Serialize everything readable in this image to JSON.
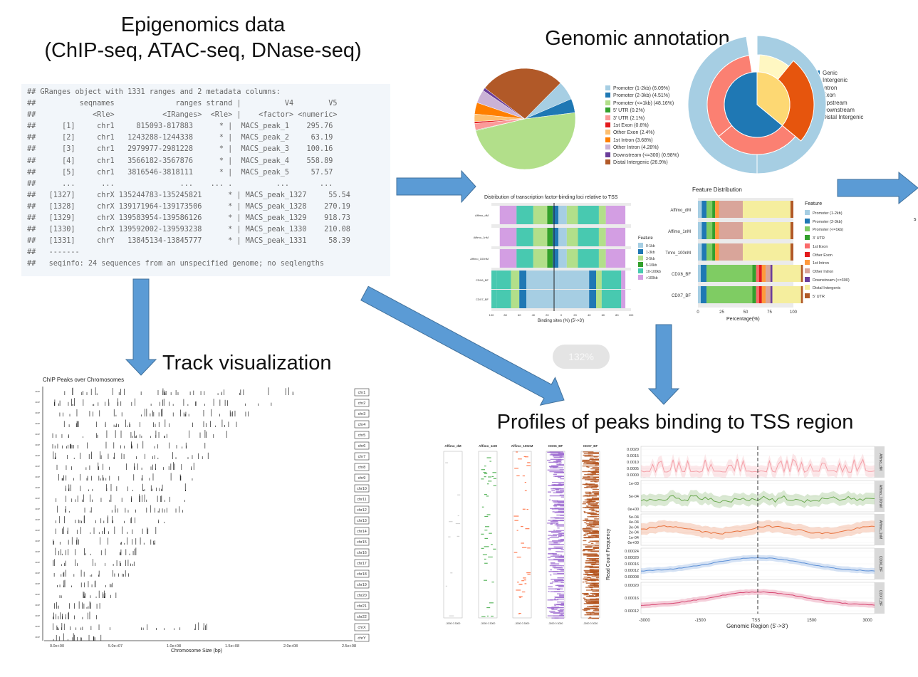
{
  "titles": {
    "epigenomics_line1": "Epigenomics data",
    "epigenomics_line2": "(ChIP-seq, ATAC-seq, DNase-seq)",
    "genomic_annotation": "Genomic annotation",
    "track_visualization": "Track visualization",
    "profiles": "Profiles of peaks binding to TSS region"
  },
  "code_lines": [
    "## GRanges object with 1331 ranges and 2 metadata columns:",
    "##          seqnames              ranges strand |          V4        V5",
    "##             <Rle>           <IRanges>  <Rle> |    <factor> <numeric>",
    "##      [1]     chr1     815093-817883      * |  MACS_peak_1    295.76",
    "##      [2]     chr1   1243288-1244338      * |  MACS_peak_2     63.19",
    "##      [3]     chr1   2979977-2981228      * |  MACS_peak_3    100.16",
    "##      [4]     chr1   3566182-3567876      * |  MACS_peak_4    558.89",
    "##      [5]     chr1   3816546-3818111      * |  MACS_peak_5     57.57",
    "##      ...      ...               ...    ... .          ...       ...",
    "##   [1327]     chrX 135244783-135245821      * | MACS_peak_1327     55.54",
    "##   [1328]     chrX 139171964-139173506      * | MACS_peak_1328    270.19",
    "##   [1329]     chrX 139583954-139586126      * | MACS_peak_1329    918.73",
    "##   [1330]     chrX 139592002-139593238      * | MACS_peak_1330    210.08",
    "##   [1331]     chrY   13845134-13845777      * | MACS_peak_1331     58.39",
    "##   -------",
    "##   seqinfo: 24 sequences from an unspecified genome; no seqlengths"
  ],
  "pie_legend": [
    {
      "label": "Promoter (1-2kb) (6.09%)",
      "color": "#a6cee3"
    },
    {
      "label": "Promoter (2-3kb) (4.51%)",
      "color": "#1f78b4"
    },
    {
      "label": "Promoter (<=1kb) (48.16%)",
      "color": "#b2df8a"
    },
    {
      "label": "5' UTR (0.2%)",
      "color": "#33a02c"
    },
    {
      "label": "3' UTR (2.1%)",
      "color": "#fb9a99"
    },
    {
      "label": "1st Exon (0.6%)",
      "color": "#e31a1c"
    },
    {
      "label": "Other Exon (2.4%)",
      "color": "#fdbf6f"
    },
    {
      "label": "1st Intron (3.68%)",
      "color": "#ff7f00"
    },
    {
      "label": "Other Intron (4.28%)",
      "color": "#cab2d6"
    },
    {
      "label": "Downstream (<=300) (0.98%)",
      "color": "#6a3d9a"
    },
    {
      "label": "Distal Intergenic (26.9%)",
      "color": "#b15928"
    }
  ],
  "donut_legend": [
    {
      "label": "Genic",
      "color": "#1f78b4"
    },
    {
      "label": "Intergenic",
      "color": "#fdbf6f"
    },
    {
      "label": "Intron",
      "color": "#fb8072"
    },
    {
      "label": "Exon",
      "color": "#a6cee3"
    },
    {
      "label": "Upstream",
      "color": "#fdd873"
    },
    {
      "label": "Downstream",
      "color": "#fff7c2"
    },
    {
      "label": "Distal Intergenic",
      "color": "#e6550d"
    }
  ],
  "tss_chart": {
    "title": "Distribution of transcription factor-binding loci relative to TSS",
    "xlabel": "Binding sites (%) (5'->3')",
    "rows": [
      "Affimo_dM",
      "Affimo_1nM",
      "Affimo_100nM",
      "CDX6_BF",
      "CDX7_BF"
    ],
    "legend_title": "Feature",
    "legend": [
      {
        "label": "0-1kb",
        "color": "#a6cee3"
      },
      {
        "label": "1-3kb",
        "color": "#1f78b4"
      },
      {
        "label": "3-5kb",
        "color": "#b2df8a"
      },
      {
        "label": "5-10kb",
        "color": "#33a02c"
      },
      {
        "label": "10-100kb",
        "color": "#48c9b0"
      },
      {
        "label": ">100kb",
        "color": "#d39ee3"
      }
    ]
  },
  "feature_chart": {
    "title": "Feature Distribution",
    "xlabel": "Percentage(%)",
    "ticks": [
      "0",
      "25",
      "50",
      "75",
      "100"
    ],
    "rows": [
      "Affimo_dM",
      "Affimo_1nM",
      "Tmro_100nM",
      "CDX6_BF",
      "CDX7_BF"
    ],
    "legend_title": "Feature",
    "legend": [
      {
        "label": "Promoter (1-2kb)",
        "color": "#a6cee3"
      },
      {
        "label": "Promoter (2-3kb)",
        "color": "#1f78b4"
      },
      {
        "label": "Promoter (<=1kb)",
        "color": "#7fcc63"
      },
      {
        "label": "3' UTR",
        "color": "#33a02c"
      },
      {
        "label": "1st Exon",
        "color": "#fb6a6a"
      },
      {
        "label": "Other Exon",
        "color": "#e31a1c"
      },
      {
        "label": "1st Intron",
        "color": "#ff9a3c"
      },
      {
        "label": "Other Intron",
        "color": "#d9a59a"
      },
      {
        "label": "Downstream (<=300)",
        "color": "#6a3d9a"
      },
      {
        "label": "Distal Intergenic",
        "color": "#f5ee9e"
      },
      {
        "label": "5' UTR",
        "color": "#b15928"
      }
    ]
  },
  "track": {
    "title": "ChIP Peaks over Chromosomes",
    "xlabel": "Chromosome Size (bp)",
    "ticks": [
      "0.0e+00",
      "5.0e+07",
      "1.0e+08",
      "1.5e+08",
      "2.0e+08",
      "2.5e+08"
    ],
    "chromosomes": [
      "chr1",
      "chr2",
      "chr3",
      "chr4",
      "chr5",
      "chr6",
      "chr7",
      "chr8",
      "chr9",
      "chr10",
      "chr11",
      "chr12",
      "chr13",
      "chr14",
      "chr15",
      "chr16",
      "chr17",
      "chr18",
      "chr19",
      "chr20",
      "chr21",
      "chr22",
      "chrX",
      "chrY"
    ]
  },
  "heatmap_labels": [
    "Affimo_dM",
    "Affimo_1nM",
    "Affimo_100nM",
    "CDX6_BF",
    "CDX7_BF"
  ],
  "heatmap_colors": [
    "#cccccc",
    "#4caf50",
    "#ff7043",
    "#9c6ad0",
    "#b3541e"
  ],
  "heatmap_tick": "-3000  0  3000",
  "profile": {
    "ylabel": "Read Count Frequency",
    "xlabel": "Genomic Region (5'->3')",
    "xticks": [
      "-3000",
      "-1500",
      "TSS",
      "1500",
      "3000"
    ],
    "strips": [
      "Affimo_dM",
      "Affimo_100nM",
      "Affimo_1nM",
      "CDX6_BF",
      "CDX7_BF"
    ],
    "panel_ticks": [
      [
        "0.0020",
        "0.0015",
        "0.0010",
        "0.0005",
        "0.0000"
      ],
      [
        "1e-03",
        "5e-04",
        "0e+00"
      ],
      [
        "5e-04",
        "4e-04",
        "3e-04",
        "2e-04",
        "1e-04",
        "0e+00"
      ],
      [
        "0.00024",
        "0.00020",
        "0.00016",
        "0.00012",
        "0.00008"
      ],
      [
        "0.00020",
        "0.00016",
        "0.00012"
      ]
    ],
    "colors": [
      "#f4a0a8",
      "#6aa84f",
      "#e8703a",
      "#5b8fd6",
      "#d64570"
    ]
  },
  "zoom_label": "132%",
  "right_edge_text": "s"
}
